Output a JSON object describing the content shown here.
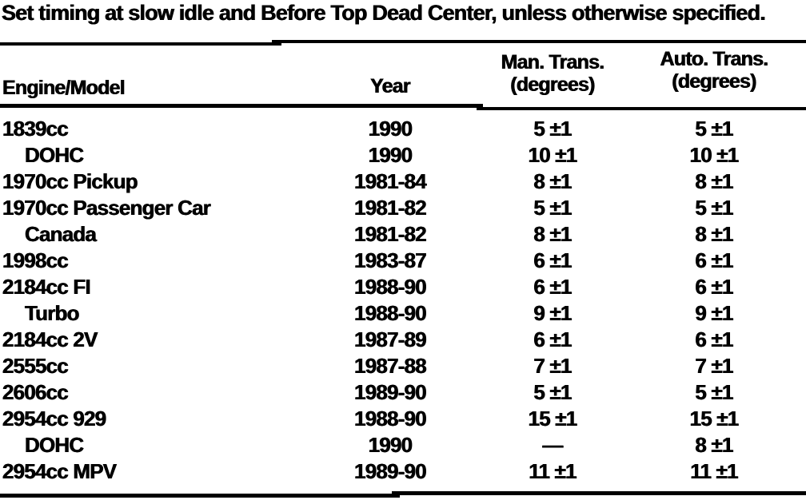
{
  "caption": "Set timing at slow idle and Before Top Dead Center, unless otherwise specified.",
  "colors": {
    "text": "#000000",
    "background": "#ffffff"
  },
  "table": {
    "headers": {
      "engine_model": "Engine/Model",
      "year": "Year",
      "man_trans_line1": "Man. Trans.",
      "man_trans_line2": "(degrees)",
      "auto_trans_line1": "Auto. Trans.",
      "auto_trans_line2": "(degrees)"
    },
    "rows": [
      {
        "engine_model": "1839cc",
        "indent": false,
        "year": "1990",
        "man_trans": "5 ±1",
        "auto_trans": "5 ±1"
      },
      {
        "engine_model": "DOHC",
        "indent": true,
        "year": "1990",
        "man_trans": "10 ±1",
        "auto_trans": "10 ±1"
      },
      {
        "engine_model": "1970cc Pickup",
        "indent": false,
        "year": "1981-84",
        "man_trans": "8 ±1",
        "auto_trans": "8 ±1"
      },
      {
        "engine_model": "1970cc Passenger Car",
        "indent": false,
        "year": "1981-82",
        "man_trans": "5 ±1",
        "auto_trans": "5 ±1"
      },
      {
        "engine_model": "Canada",
        "indent": true,
        "year": "1981-82",
        "man_trans": "8 ±1",
        "auto_trans": "8 ±1"
      },
      {
        "engine_model": "1998cc",
        "indent": false,
        "year": "1983-87",
        "man_trans": "6 ±1",
        "auto_trans": "6 ±1"
      },
      {
        "engine_model": "2184cc FI",
        "indent": false,
        "year": "1988-90",
        "man_trans": "6 ±1",
        "auto_trans": "6 ±1"
      },
      {
        "engine_model": "Turbo",
        "indent": true,
        "year": "1988-90",
        "man_trans": "9 ±1",
        "auto_trans": "9 ±1"
      },
      {
        "engine_model": "2184cc 2V",
        "indent": false,
        "year": "1987-89",
        "man_trans": "6 ±1",
        "auto_trans": "6 ±1"
      },
      {
        "engine_model": "2555cc",
        "indent": false,
        "year": "1987-88",
        "man_trans": "7 ±1",
        "auto_trans": "7 ±1"
      },
      {
        "engine_model": "2606cc",
        "indent": false,
        "year": "1989-90",
        "man_trans": "5 ±1",
        "auto_trans": "5 ±1"
      },
      {
        "engine_model": "2954cc 929",
        "indent": false,
        "year": "1988-90",
        "man_trans": "15 ±1",
        "auto_trans": "15 ±1"
      },
      {
        "engine_model": "DOHC",
        "indent": true,
        "year": "1990",
        "man_trans": "—",
        "auto_trans": "8 ±1"
      },
      {
        "engine_model": "2954cc MPV",
        "indent": false,
        "year": "1989-90",
        "man_trans": "11 ±1",
        "auto_trans": "11 ±1"
      }
    ]
  }
}
